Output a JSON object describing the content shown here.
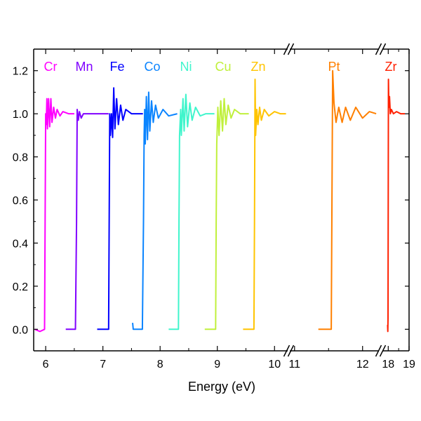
{
  "chart_data": {
    "type": "line",
    "title": "",
    "xlabel": "Energy (eV)",
    "ylabel": "",
    "ylim": [
      -0.1,
      1.3
    ],
    "y_ticks": [
      "0.0",
      "0.2",
      "0.4",
      "0.6",
      "0.8",
      "1.0",
      "1.2"
    ],
    "x_axis_broken": true,
    "x_segments": [
      {
        "range": [
          5.79,
          10.23
        ],
        "ticks": [
          "6",
          "7",
          "8",
          "9",
          "10"
        ]
      },
      {
        "range": [
          10.93,
          12.24
        ],
        "ticks": [
          "11",
          "12"
        ]
      },
      {
        "range": [
          17.72,
          19.0
        ],
        "ticks": [
          "18",
          "19"
        ]
      }
    ],
    "grid": false,
    "legend": "labels above each curve",
    "series": [
      {
        "name": "Cr",
        "color": "#ff00ff",
        "points": [
          [
            5.81,
            0.0
          ],
          [
            5.9,
            -0.01
          ],
          [
            5.98,
            0.0
          ],
          [
            5.99,
            0.5
          ],
          [
            6.0,
            1.0
          ],
          [
            6.01,
            0.95
          ],
          [
            6.02,
            1.07
          ],
          [
            6.03,
            0.93
          ],
          [
            6.05,
            1.07
          ],
          [
            6.07,
            0.94
          ],
          [
            6.09,
            1.07
          ],
          [
            6.11,
            0.96
          ],
          [
            6.14,
            1.03
          ],
          [
            6.17,
            0.98
          ],
          [
            6.2,
            1.02
          ],
          [
            6.25,
            0.99
          ],
          [
            6.3,
            1.01
          ],
          [
            6.4,
            1.0
          ],
          [
            6.5,
            1.0
          ]
        ]
      },
      {
        "name": "Mn",
        "color": "#8000ff",
        "points": [
          [
            6.35,
            0.0
          ],
          [
            6.52,
            0.0
          ],
          [
            6.54,
            0.5
          ],
          [
            6.55,
            1.02
          ],
          [
            6.57,
            0.97
          ],
          [
            6.59,
            1.01
          ],
          [
            6.62,
            0.98
          ],
          [
            6.66,
            1.0
          ],
          [
            6.8,
            1.0
          ],
          [
            7.1,
            1.0
          ]
        ]
      },
      {
        "name": "Fe",
        "color": "#0000ff",
        "points": [
          [
            6.9,
            0.0
          ],
          [
            7.1,
            0.0
          ],
          [
            7.11,
            0.5
          ],
          [
            7.12,
            1.0
          ],
          [
            7.13,
            0.9
          ],
          [
            7.15,
            1.0
          ],
          [
            7.17,
            0.89
          ],
          [
            7.19,
            1.12
          ],
          [
            7.21,
            0.93
          ],
          [
            7.24,
            1.07
          ],
          [
            7.27,
            0.95
          ],
          [
            7.31,
            1.04
          ],
          [
            7.35,
            0.97
          ],
          [
            7.4,
            1.02
          ],
          [
            7.5,
            1.0
          ],
          [
            7.7,
            1.0
          ]
        ]
      },
      {
        "name": "Co",
        "color": "#0a84ff",
        "points": [
          [
            7.52,
            0.03
          ],
          [
            7.53,
            0.0
          ],
          [
            7.69,
            0.0
          ],
          [
            7.71,
            0.5
          ],
          [
            7.72,
            0.9
          ],
          [
            7.73,
            1.02
          ],
          [
            7.74,
            0.86
          ],
          [
            7.76,
            1.08
          ],
          [
            7.78,
            0.88
          ],
          [
            7.8,
            1.1
          ],
          [
            7.82,
            0.92
          ],
          [
            7.85,
            1.06
          ],
          [
            7.88,
            0.96
          ],
          [
            7.92,
            1.04
          ],
          [
            7.97,
            0.98
          ],
          [
            8.05,
            1.02
          ],
          [
            8.15,
            0.99
          ],
          [
            8.3,
            1.0
          ]
        ]
      },
      {
        "name": "Ni",
        "color": "#40f5cc",
        "points": [
          [
            8.15,
            0.0
          ],
          [
            8.32,
            0.0
          ],
          [
            8.33,
            0.5
          ],
          [
            8.34,
            0.9
          ],
          [
            8.36,
            1.02
          ],
          [
            8.37,
            0.9
          ],
          [
            8.4,
            1.07
          ],
          [
            8.42,
            0.92
          ],
          [
            8.45,
            1.09
          ],
          [
            8.48,
            0.94
          ],
          [
            8.52,
            1.05
          ],
          [
            8.56,
            0.97
          ],
          [
            8.62,
            1.03
          ],
          [
            8.7,
            0.99
          ],
          [
            8.8,
            1.0
          ],
          [
            8.95,
            1.0
          ]
        ]
      },
      {
        "name": "Cu",
        "color": "#c0f03c",
        "points": [
          [
            8.78,
            0.0
          ],
          [
            8.97,
            0.0
          ],
          [
            8.98,
            0.5
          ],
          [
            8.99,
            0.86
          ],
          [
            9.01,
            1.03
          ],
          [
            9.03,
            0.9
          ],
          [
            9.06,
            1.06
          ],
          [
            9.09,
            0.92
          ],
          [
            9.12,
            1.07
          ],
          [
            9.15,
            0.95
          ],
          [
            9.19,
            1.04
          ],
          [
            9.24,
            0.98
          ],
          [
            9.3,
            1.02
          ],
          [
            9.4,
            1.0
          ],
          [
            9.55,
            1.0
          ]
        ]
      },
      {
        "name": "Zn",
        "color": "#ffc400",
        "points": [
          [
            9.45,
            0.0
          ],
          [
            9.64,
            0.0
          ],
          [
            9.65,
            0.5
          ],
          [
            9.66,
            1.16
          ],
          [
            9.67,
            0.9
          ],
          [
            9.69,
            1.02
          ],
          [
            9.71,
            0.95
          ],
          [
            9.74,
            1.03
          ],
          [
            9.77,
            0.97
          ],
          [
            9.82,
            1.02
          ],
          [
            9.9,
            0.99
          ],
          [
            10.0,
            1.01
          ],
          [
            10.1,
            1.0
          ],
          [
            10.2,
            1.0
          ]
        ]
      },
      {
        "name": "Pt",
        "color": "#ff8000",
        "points": [
          [
            11.35,
            0.0
          ],
          [
            11.54,
            0.0
          ],
          [
            11.55,
            0.6
          ],
          [
            11.56,
            1.2
          ],
          [
            11.58,
            1.05
          ],
          [
            11.61,
            0.96
          ],
          [
            11.65,
            1.03
          ],
          [
            11.7,
            0.96
          ],
          [
            11.75,
            1.03
          ],
          [
            11.82,
            0.97
          ],
          [
            11.9,
            1.03
          ],
          [
            12.0,
            0.98
          ],
          [
            12.1,
            1.01
          ],
          [
            12.2,
            1.0
          ]
        ]
      },
      {
        "name": "Zr",
        "color": "#ff2000",
        "points": [
          [
            17.97,
            0.02
          ],
          [
            17.98,
            -0.01
          ],
          [
            17.99,
            0.05
          ],
          [
            18.0,
            0.6
          ],
          [
            18.01,
            1.16
          ],
          [
            18.03,
            1.03
          ],
          [
            18.06,
            1.08
          ],
          [
            18.1,
            1.0
          ],
          [
            18.15,
            1.02
          ],
          [
            18.25,
            1.0
          ],
          [
            18.4,
            1.01
          ],
          [
            18.6,
            1.0
          ],
          [
            18.8,
            1.0
          ]
        ]
      }
    ]
  }
}
